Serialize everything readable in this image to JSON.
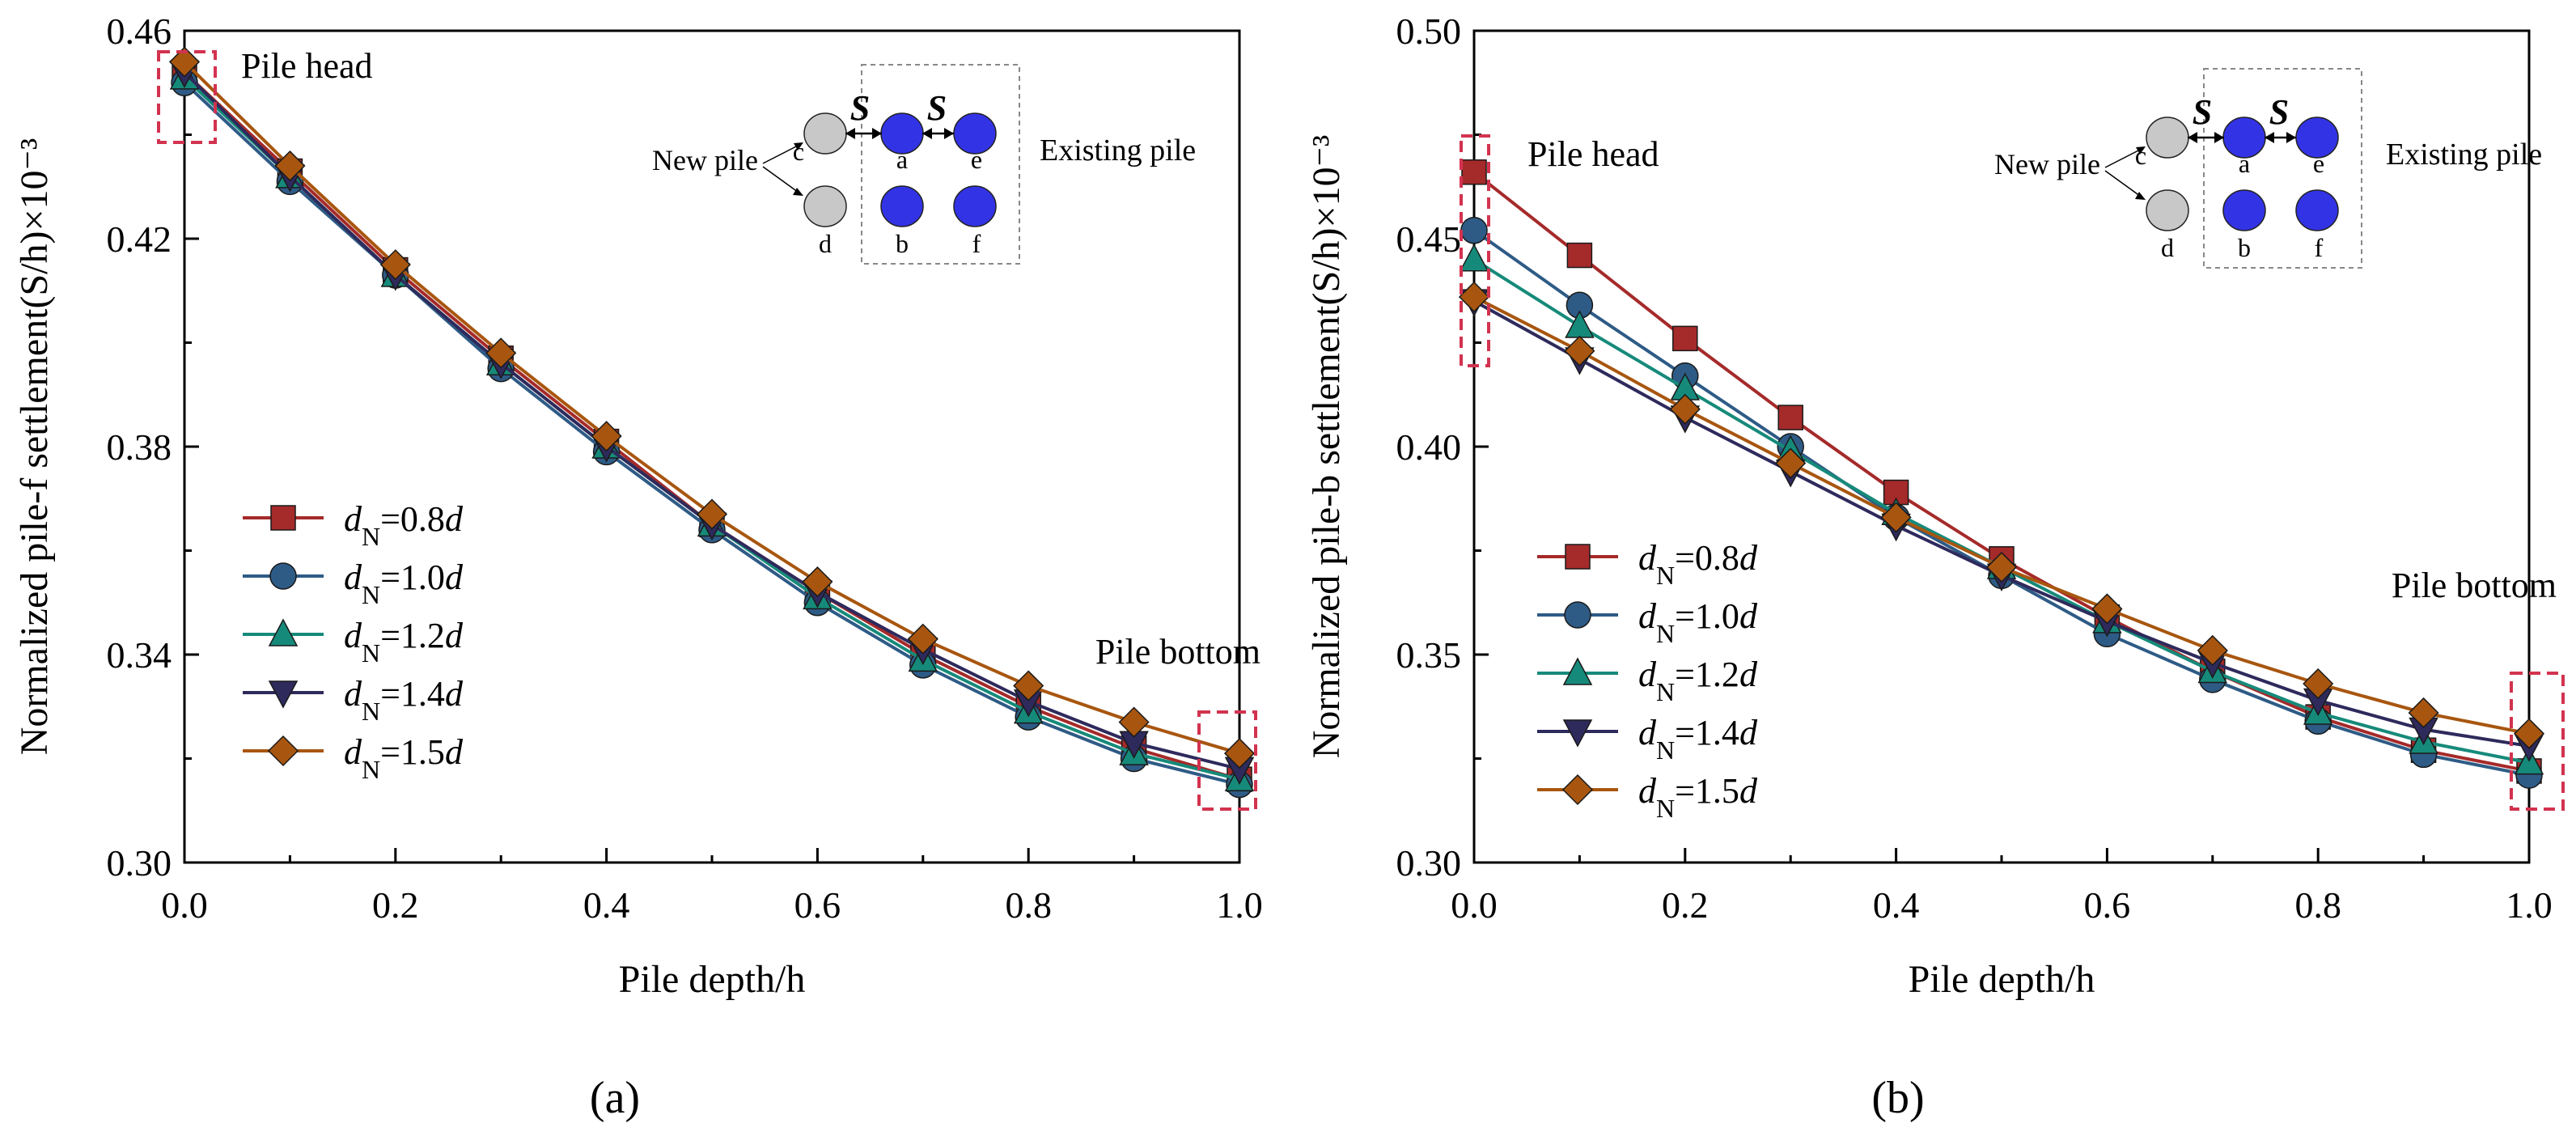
{
  "colors": {
    "s08": "#a52a2a",
    "s10": "#2e5b86",
    "s12": "#168a7a",
    "s14": "#2e2a5c",
    "s15": "#a8560f",
    "highlight": "#d2334f",
    "existing_pile": "#3333e6",
    "new_pile": "#c8c8c8",
    "spacing_label": "#ee1c1c"
  },
  "chart_data": [
    {
      "type": "line",
      "panel_label": "(a)",
      "xlabel": "Pile depth/h",
      "ylabel": "Normalized  pile-f settlement(S/h)×10⁻³",
      "xlim": [
        0.0,
        1.0
      ],
      "ylim": [
        0.3,
        0.46
      ],
      "xticks": [
        0.0,
        0.2,
        0.4,
        0.6,
        0.8,
        1.0
      ],
      "xtick_labels": [
        "0.0",
        "0.2",
        "0.4",
        "0.6",
        "0.8",
        "1.0"
      ],
      "yticks": [
        0.3,
        0.34,
        0.38,
        0.42,
        0.46
      ],
      "ytick_labels": [
        "0.30",
        "0.34",
        "0.38",
        "0.42",
        "0.46"
      ],
      "legend_position": "middle-left",
      "x": [
        0.0,
        0.1,
        0.2,
        0.3,
        0.4,
        0.5,
        0.6,
        0.7,
        0.8,
        0.9,
        1.0
      ],
      "series": [
        {
          "name": "dN=0.8d",
          "ratio": "0.8",
          "marker": "square",
          "color_key": "s08",
          "values": [
            0.452,
            0.433,
            0.414,
            0.397,
            0.381,
            0.365,
            0.352,
            0.34,
            0.33,
            0.322,
            0.316
          ]
        },
        {
          "name": "dN=1.0d",
          "ratio": "1.0",
          "marker": "circle",
          "color_key": "s10",
          "values": [
            0.45,
            0.431,
            0.413,
            0.395,
            0.379,
            0.364,
            0.35,
            0.338,
            0.328,
            0.32,
            0.315
          ]
        },
        {
          "name": "dN=1.2d",
          "ratio": "1.2",
          "marker": "triangle-up",
          "color_key": "s12",
          "values": [
            0.451,
            0.432,
            0.413,
            0.396,
            0.38,
            0.365,
            0.351,
            0.339,
            0.329,
            0.321,
            0.316
          ]
        },
        {
          "name": "dN=1.4d",
          "ratio": "1.4",
          "marker": "triangle-down",
          "color_key": "s14",
          "values": [
            0.452,
            0.432,
            0.413,
            0.396,
            0.38,
            0.365,
            0.352,
            0.341,
            0.331,
            0.323,
            0.318
          ]
        },
        {
          "name": "dN=1.5d",
          "ratio": "1.5",
          "marker": "diamond",
          "color_key": "s15",
          "values": [
            0.454,
            0.434,
            0.415,
            0.398,
            0.382,
            0.367,
            0.354,
            0.343,
            0.334,
            0.327,
            0.321
          ]
        }
      ],
      "annotations": {
        "head": "Pile head",
        "bottom": "Pile bottom"
      },
      "inset": {
        "new_pile": "New pile",
        "existing_pile": "Existing pile",
        "spacing": "S",
        "labels": [
          "c",
          "a",
          "e",
          "d",
          "b",
          "f"
        ]
      }
    },
    {
      "type": "line",
      "panel_label": "(b)",
      "xlabel": "Pile depth/h",
      "ylabel": "Normalized  pile-b settlement(S/h)×10⁻³",
      "xlim": [
        0.0,
        1.0
      ],
      "ylim": [
        0.3,
        0.5
      ],
      "xticks": [
        0.0,
        0.2,
        0.4,
        0.6,
        0.8,
        1.0
      ],
      "xtick_labels": [
        "0.0",
        "0.2",
        "0.4",
        "0.6",
        "0.8",
        "1.0"
      ],
      "yticks": [
        0.3,
        0.35,
        0.4,
        0.45,
        0.5
      ],
      "ytick_labels": [
        "0.30",
        "0.35",
        "0.40",
        "0.45",
        "0.50"
      ],
      "legend_position": "lower-left",
      "x": [
        0.0,
        0.1,
        0.2,
        0.3,
        0.4,
        0.5,
        0.6,
        0.7,
        0.8,
        0.9,
        1.0
      ],
      "series": [
        {
          "name": "dN=0.8d",
          "ratio": "0.8",
          "marker": "square",
          "color_key": "s08",
          "values": [
            0.466,
            0.446,
            0.426,
            0.407,
            0.389,
            0.373,
            0.359,
            0.346,
            0.335,
            0.327,
            0.322
          ]
        },
        {
          "name": "dN=1.0d",
          "ratio": "1.0",
          "marker": "circle",
          "color_key": "s10",
          "values": [
            0.452,
            0.434,
            0.417,
            0.4,
            0.383,
            0.369,
            0.355,
            0.344,
            0.334,
            0.326,
            0.321
          ]
        },
        {
          "name": "dN=1.2d",
          "ratio": "1.2",
          "marker": "triangle-up",
          "color_key": "s12",
          "values": [
            0.445,
            0.429,
            0.414,
            0.399,
            0.384,
            0.371,
            0.358,
            0.346,
            0.336,
            0.329,
            0.324
          ]
        },
        {
          "name": "dN=1.4d",
          "ratio": "1.4",
          "marker": "triangle-down",
          "color_key": "s14",
          "values": [
            0.435,
            0.421,
            0.407,
            0.394,
            0.381,
            0.369,
            0.358,
            0.348,
            0.339,
            0.332,
            0.328
          ]
        },
        {
          "name": "dN=1.5d",
          "ratio": "1.5",
          "marker": "diamond",
          "color_key": "s15",
          "values": [
            0.436,
            0.423,
            0.409,
            0.396,
            0.383,
            0.371,
            0.361,
            0.351,
            0.343,
            0.336,
            0.331
          ]
        }
      ],
      "annotations": {
        "head": "Pile head",
        "bottom": "Pile bottom"
      },
      "inset": {
        "new_pile": "New pile",
        "existing_pile": "Existing pile",
        "spacing": "S",
        "labels": [
          "c",
          "a",
          "e",
          "d",
          "b",
          "f"
        ]
      }
    }
  ]
}
